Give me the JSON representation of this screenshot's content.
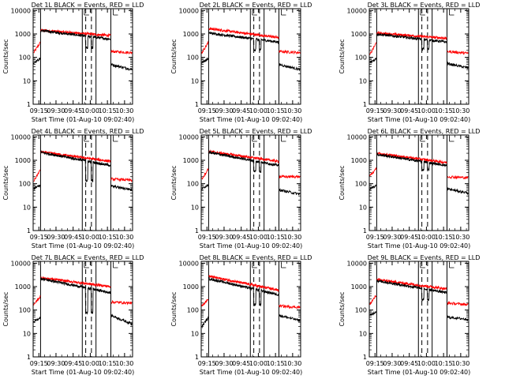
{
  "chart_data": {
    "type": "line",
    "grid": false,
    "yscale": "log",
    "ylabel": "Counts/sec",
    "xlabel": "Start Time (01-Aug-10 09:02:40)",
    "xlim": [
      "09:10",
      "10:37"
    ],
    "ylim": [
      1,
      12000
    ],
    "x_ticks": [
      "09:15",
      "09:30",
      "09:45",
      "10:00",
      "10:15",
      "10:30"
    ],
    "y_ticks": [
      "1",
      "10",
      "100",
      "1000",
      "10000"
    ],
    "series_names": [
      "Events",
      "LLD"
    ],
    "series_colors": {
      "events": "#000000",
      "lld": "#ff0000"
    },
    "boundaries": {
      "solid": [
        "09:16:30",
        "09:53:00",
        "10:05:00",
        "10:18:00"
      ],
      "dashed": [
        "09:56:00",
        "10:01:00"
      ]
    },
    "panels": [
      {
        "title": "Det 1L BLACK = Events, RED = LLD",
        "events": {
          "pre": [
            60,
            90
          ],
          "start": 1400,
          "end": 600,
          "dip": 220,
          "post": [
            50,
            30
          ]
        },
        "lld": {
          "pre": [
            160,
            450
          ],
          "start": 1450,
          "end": 850,
          "post": [
            180,
            160
          ]
        }
      },
      {
        "title": "Det 2L BLACK = Events, RED = LLD",
        "events": {
          "pre": [
            60,
            90
          ],
          "start": 1100,
          "end": 450,
          "dip": 180,
          "post": [
            50,
            30
          ]
        },
        "lld": {
          "pre": [
            160,
            450
          ],
          "start": 1700,
          "end": 700,
          "post": [
            180,
            160
          ]
        }
      },
      {
        "title": "Det 3L BLACK = Events, RED = LLD",
        "events": {
          "pre": [
            60,
            90
          ],
          "start": 1000,
          "end": 450,
          "dip": 200,
          "post": [
            55,
            35
          ]
        },
        "lld": {
          "pre": [
            130,
            450
          ],
          "start": 1100,
          "end": 650,
          "post": [
            180,
            150
          ]
        }
      },
      {
        "title": "Det 4L BLACK = Events, RED = LLD",
        "events": {
          "pre": [
            60,
            90
          ],
          "start": 2200,
          "end": 600,
          "dip": 120,
          "post": [
            80,
            55
          ]
        },
        "lld": {
          "pre": [
            130,
            400
          ],
          "start": 2300,
          "end": 900,
          "post": [
            160,
            140
          ]
        }
      },
      {
        "title": "Det 5L BLACK = Events, RED = LLD",
        "events": {
          "pre": [
            60,
            90
          ],
          "start": 2200,
          "end": 600,
          "dip": 300,
          "post": [
            55,
            35
          ]
        },
        "lld": {
          "pre": [
            160,
            450
          ],
          "start": 2400,
          "end": 900,
          "post": [
            200,
            200
          ]
        }
      },
      {
        "title": "Det 6L BLACK = Events, RED = LLD",
        "events": {
          "pre": [
            60,
            90
          ],
          "start": 1800,
          "end": 600,
          "dip": 350,
          "post": [
            60,
            40
          ]
        },
        "lld": {
          "pre": [
            220,
            450
          ],
          "start": 2000,
          "end": 800,
          "post": [
            200,
            180
          ]
        }
      },
      {
        "title": "Det 7L BLACK = Events, RED = LLD",
        "events": {
          "pre": [
            30,
            50
          ],
          "start": 2200,
          "end": 550,
          "dip": 70,
          "post": [
            60,
            25
          ]
        },
        "lld": {
          "pre": [
            160,
            400
          ],
          "start": 2400,
          "end": 1000,
          "post": [
            220,
            200
          ]
        }
      },
      {
        "title": "Det 8L BLACK = Events, RED = LLD",
        "events": {
          "pre": [
            20,
            50
          ],
          "start": 2200,
          "end": 450,
          "dip": 150,
          "post": [
            60,
            35
          ]
        },
        "lld": {
          "pre": [
            160,
            300
          ],
          "start": 2800,
          "end": 700,
          "post": [
            150,
            130
          ]
        }
      },
      {
        "title": "Det 9L BLACK = Events, RED = LLD",
        "events": {
          "pre": [
            60,
            90
          ],
          "start": 1800,
          "end": 550,
          "dip": 250,
          "post": [
            50,
            40
          ]
        },
        "lld": {
          "pre": [
            180,
            450
          ],
          "start": 2000,
          "end": 800,
          "post": [
            200,
            170
          ]
        }
      }
    ]
  }
}
